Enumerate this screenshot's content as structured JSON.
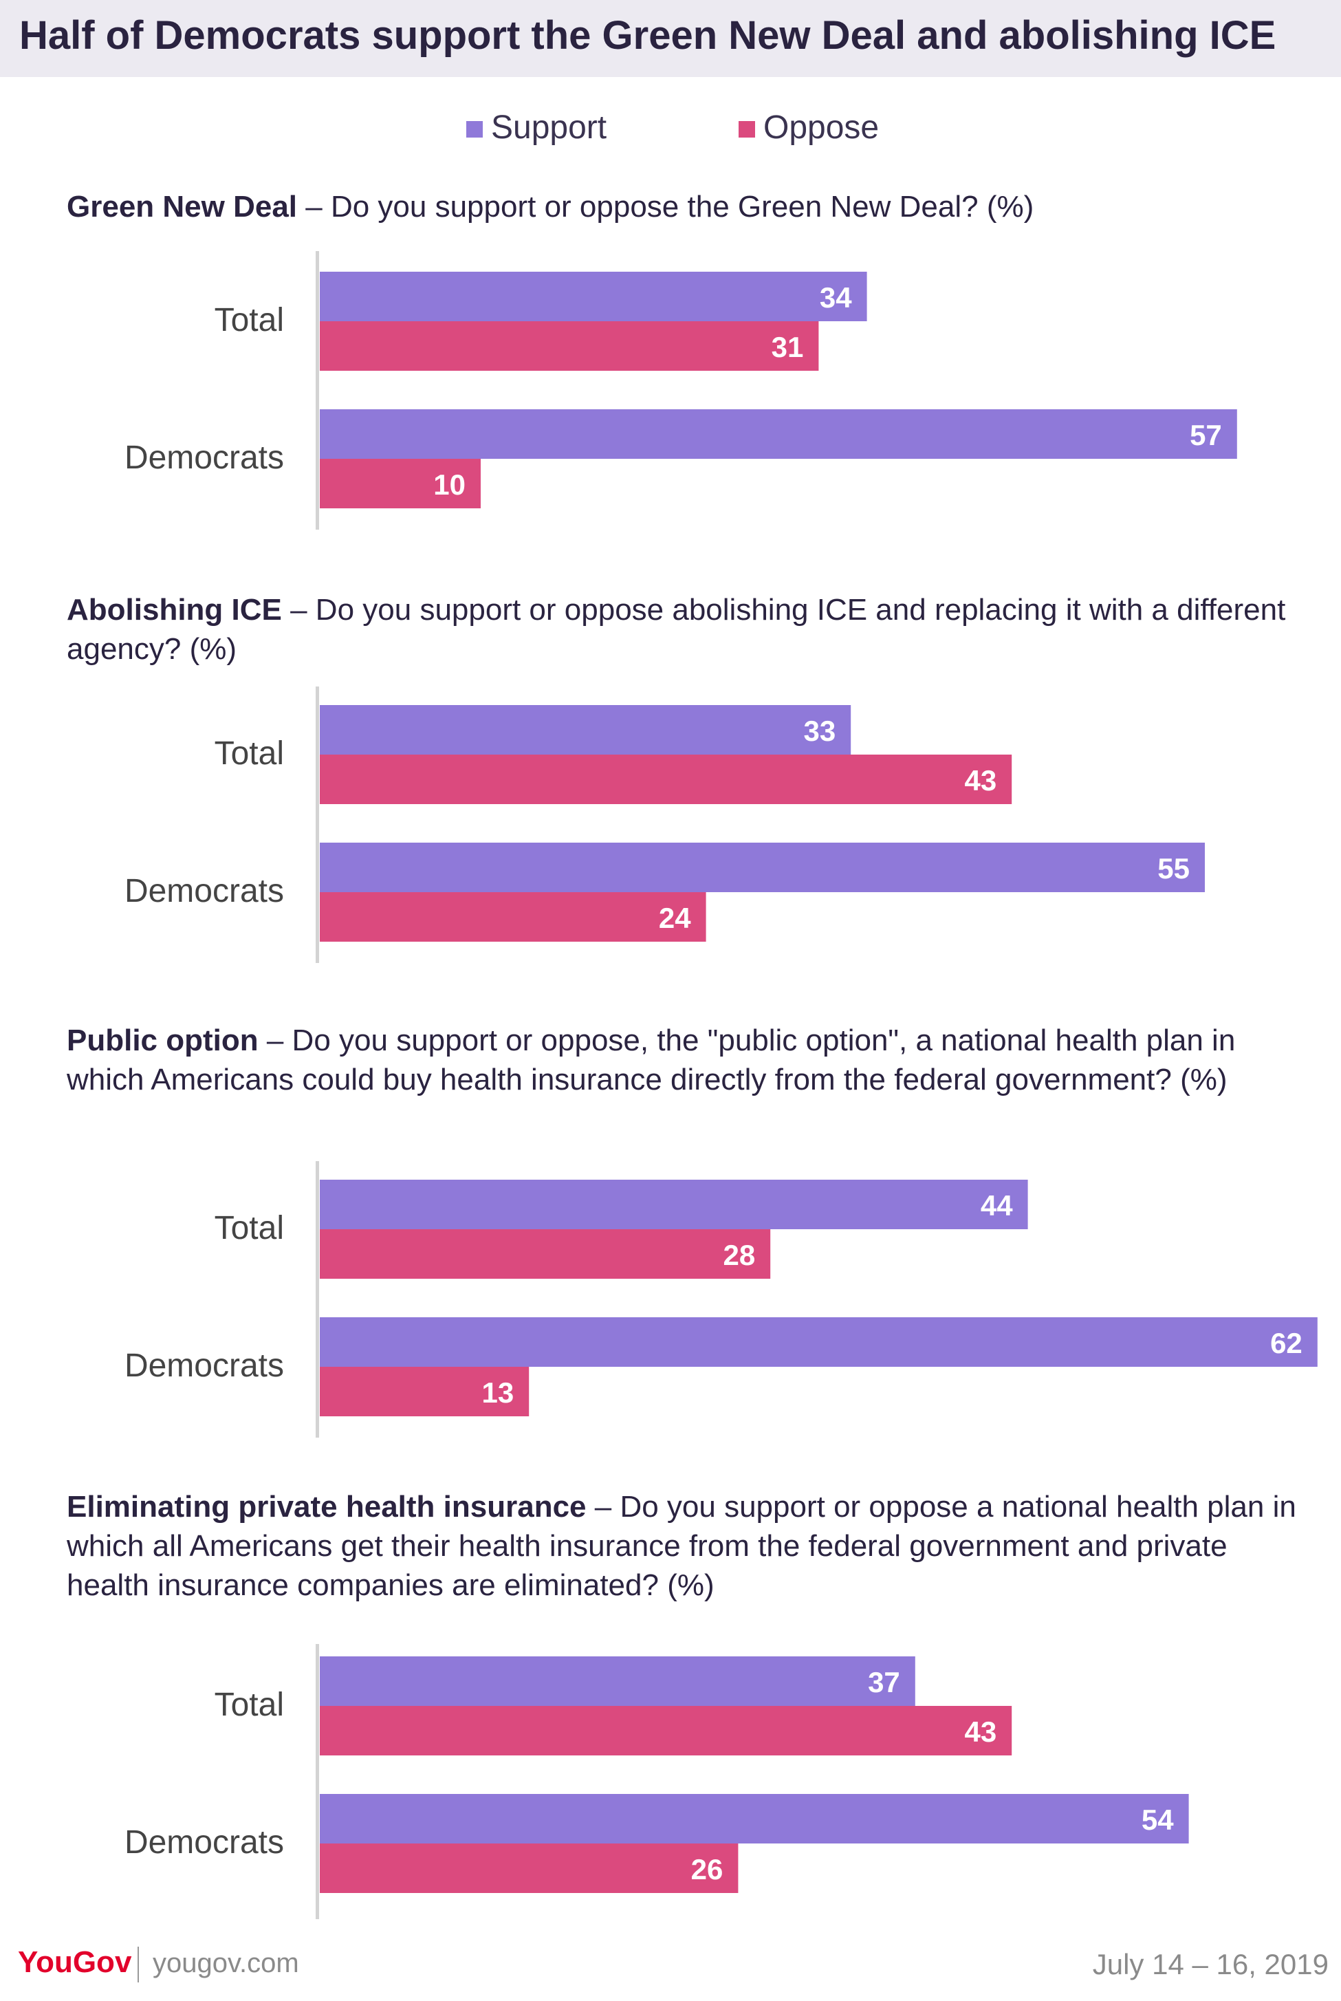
{
  "title": "Half of Democrats support the Green New Deal and abolishing ICE",
  "legend": [
    "Support",
    "Oppose"
  ],
  "colors": {
    "support": "#8f79d9",
    "oppose": "#db4a7e",
    "axis": "#d3d3d3"
  },
  "chart_data": [
    {
      "type": "bar",
      "orientation": "horizontal",
      "title_bold": "Green New Deal",
      "title_rest": " – Do you support or oppose the Green New Deal? (%)",
      "categories": [
        "Total",
        "Democrats"
      ],
      "series": [
        {
          "name": "Support",
          "values": [
            34,
            57
          ]
        },
        {
          "name": "Oppose",
          "values": [
            31,
            10
          ]
        }
      ]
    },
    {
      "type": "bar",
      "orientation": "horizontal",
      "title_bold": "Abolishing ICE",
      "title_rest": " – Do you support or oppose abolishing ICE and replacing it with a different agency? (%)",
      "categories": [
        "Total",
        "Democrats"
      ],
      "series": [
        {
          "name": "Support",
          "values": [
            33,
            55
          ]
        },
        {
          "name": "Oppose",
          "values": [
            43,
            24
          ]
        }
      ]
    },
    {
      "type": "bar",
      "orientation": "horizontal",
      "title_bold": "Public option",
      "title_rest": " – Do you support or oppose, the \"public option\", a national health plan in which Americans could buy health insurance directly from the federal government? (%)",
      "categories": [
        "Total",
        "Democrats"
      ],
      "series": [
        {
          "name": "Support",
          "values": [
            44,
            62
          ]
        },
        {
          "name": "Oppose",
          "values": [
            28,
            13
          ]
        }
      ]
    },
    {
      "type": "bar",
      "orientation": "horizontal",
      "title_bold": "Eliminating private health insurance",
      "title_rest": " – Do you support or oppose a national health plan in which all Americans get their health insurance from the federal government and private health insurance companies are eliminated? (%)",
      "categories": [
        "Total",
        "Democrats"
      ],
      "series": [
        {
          "name": "Support",
          "values": [
            37,
            54
          ]
        },
        {
          "name": "Oppose",
          "values": [
            43,
            26
          ]
        }
      ]
    }
  ],
  "footer": {
    "brand": "YouGov",
    "url": "yougov.com",
    "date": "July 14 – 16, 2019"
  }
}
